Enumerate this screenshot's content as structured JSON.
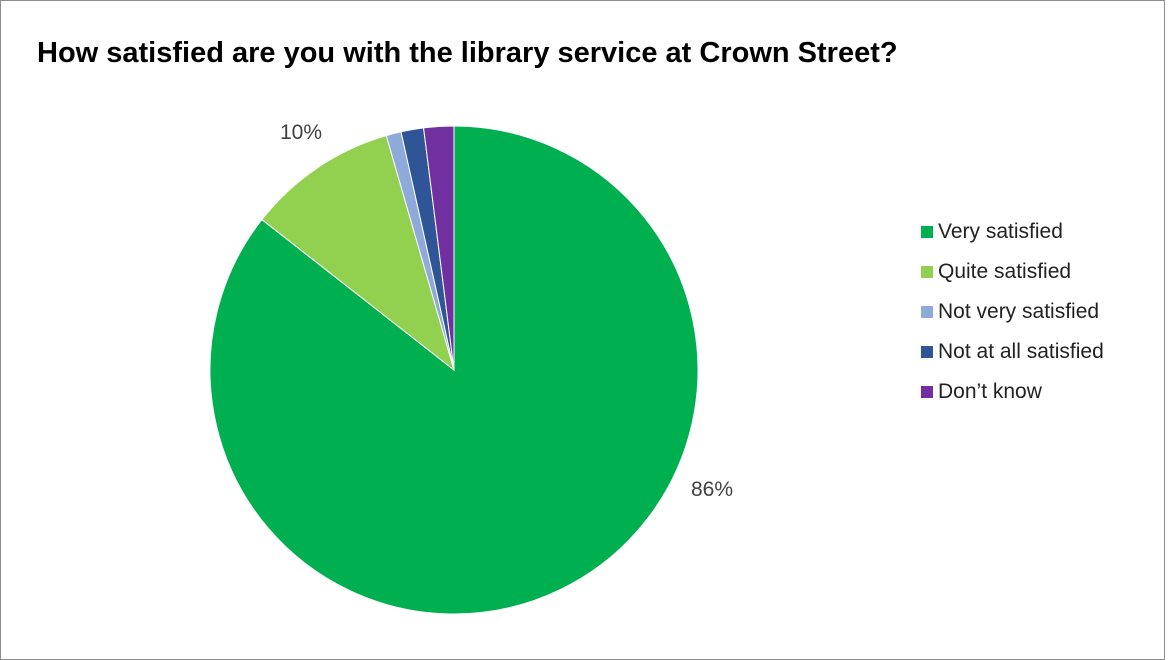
{
  "chart_data": {
    "type": "pie",
    "title": "How satisfied are you with the library service at Crown Street?",
    "categories": [
      "Very satisfied",
      "Quite satisfied",
      "Not very satisfied",
      "Not at all satisfied",
      "Don’t know"
    ],
    "values": [
      86,
      10,
      1,
      1.5,
      2
    ],
    "colors": [
      "#00b050",
      "#92d050",
      "#8eaadb",
      "#2f5597",
      "#7030a0"
    ],
    "data_labels": [
      "86%",
      "10%",
      "",
      "",
      ""
    ],
    "legend_position": "right"
  }
}
